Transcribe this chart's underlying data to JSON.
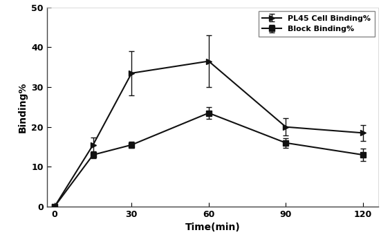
{
  "x": [
    0,
    15,
    30,
    60,
    90,
    120
  ],
  "pl45_y": [
    0,
    15.5,
    33.5,
    36.5,
    20.0,
    18.5
  ],
  "pl45_yerr": [
    0,
    1.8,
    5.5,
    6.5,
    2.2,
    2.0
  ],
  "block_y": [
    0,
    13.0,
    15.5,
    23.5,
    16.0,
    13.0
  ],
  "block_yerr": [
    0,
    0.8,
    0.8,
    1.5,
    1.2,
    1.5
  ],
  "xlabel": "Time(min)",
  "ylabel": "Binding%",
  "pl45_label": "PL45 Cell Binding%",
  "block_label": "Block Binding%",
  "xticks": [
    0,
    30,
    60,
    90,
    120
  ],
  "yticks": [
    0,
    10,
    20,
    30,
    40,
    50
  ],
  "ylim": [
    0,
    50
  ],
  "xlim": [
    -3,
    126
  ],
  "line_color": "#111111",
  "bg_color": "#ffffff",
  "label_fontsize": 10,
  "tick_fontsize": 9,
  "legend_fontsize": 8,
  "linewidth": 1.5,
  "capsize": 3,
  "elinewidth": 1.0,
  "marker_size_arrow": 6,
  "marker_size_square": 6
}
